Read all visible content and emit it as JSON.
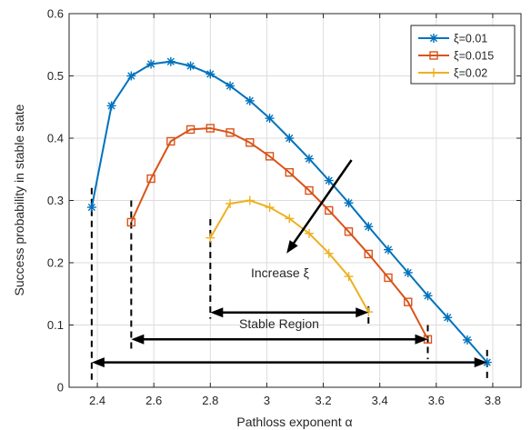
{
  "chart_data": {
    "type": "line",
    "xlabel": "Pathloss exponent α",
    "ylabel": "Success probability in stable state",
    "xlim": [
      2.3,
      3.9
    ],
    "ylim": [
      0,
      0.6
    ],
    "xticks": [
      "2.4",
      "2.6",
      "2.8",
      "3",
      "3.2",
      "3.4",
      "3.6",
      "3.8"
    ],
    "yticks": [
      "0",
      "0.1",
      "0.2",
      "0.3",
      "0.4",
      "0.5",
      "0.6"
    ],
    "grid": true,
    "legend_position": "top-right",
    "series": [
      {
        "name": "ξ=0.01",
        "color": "#0072BD",
        "marker": "asterisk",
        "x": [
          2.38,
          2.45,
          2.52,
          2.59,
          2.66,
          2.73,
          2.8,
          2.87,
          2.94,
          3.01,
          3.08,
          3.15,
          3.22,
          3.29,
          3.36,
          3.43,
          3.5,
          3.57,
          3.64,
          3.71,
          3.78
        ],
        "y": [
          0.289,
          0.452,
          0.5,
          0.519,
          0.523,
          0.516,
          0.503,
          0.484,
          0.46,
          0.432,
          0.4,
          0.367,
          0.332,
          0.296,
          0.258,
          0.221,
          0.184,
          0.147,
          0.112,
          0.076,
          0.04
        ]
      },
      {
        "name": "ξ=0.015",
        "color": "#D95319",
        "marker": "square",
        "x": [
          2.52,
          2.59,
          2.66,
          2.73,
          2.8,
          2.87,
          2.94,
          3.01,
          3.08,
          3.15,
          3.22,
          3.29,
          3.36,
          3.43,
          3.5,
          3.57
        ],
        "y": [
          0.265,
          0.335,
          0.395,
          0.414,
          0.416,
          0.409,
          0.393,
          0.371,
          0.345,
          0.316,
          0.284,
          0.25,
          0.214,
          0.176,
          0.137,
          0.077
        ]
      },
      {
        "name": "ξ=0.02",
        "color": "#EDB120",
        "marker": "plus",
        "x": [
          2.8,
          2.87,
          2.94,
          3.01,
          3.08,
          3.15,
          3.22,
          3.29,
          3.36
        ],
        "y": [
          0.24,
          0.295,
          0.3,
          0.289,
          0.271,
          0.247,
          0.215,
          0.178,
          0.121
        ]
      }
    ],
    "annotations": {
      "increase_label": "Increase ξ",
      "stable_label": "Stable Region",
      "increase_arrow": {
        "from": [
          3.3,
          0.365
        ],
        "to": [
          3.07,
          0.215
        ]
      },
      "region_arrows": [
        {
          "from": 2.8,
          "to": 3.36,
          "y": 0.12
        },
        {
          "from": 2.52,
          "to": 3.57,
          "y": 0.077
        },
        {
          "from": 2.38,
          "to": 3.78,
          "y": 0.04
        }
      ],
      "dashed_lines": [
        {
          "x": 2.38,
          "y0": 0.32,
          "y1": 0.01
        },
        {
          "x": 2.52,
          "y0": 0.3,
          "y1": 0.06
        },
        {
          "x": 2.8,
          "y0": 0.27,
          "y1": 0.11
        },
        {
          "x": 3.36,
          "y0": 0.13,
          "y1": 0.095
        },
        {
          "x": 3.57,
          "y0": 0.1,
          "y1": 0.045
        },
        {
          "x": 3.78,
          "y0": 0.06,
          "y1": 0.01
        }
      ]
    }
  }
}
